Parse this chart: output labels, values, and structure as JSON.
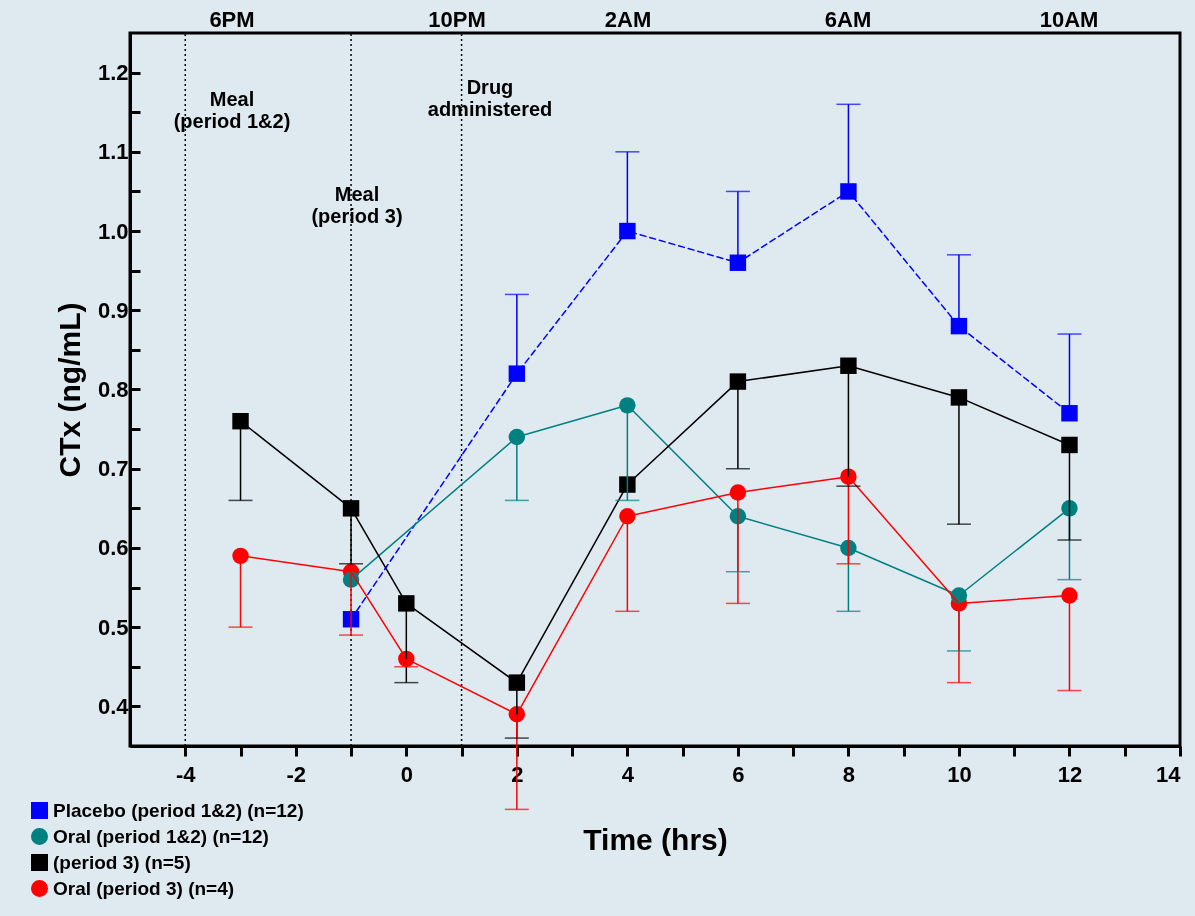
{
  "chart_data": {
    "type": "line",
    "xlabel": "Time (hrs)",
    "ylabel": "CTx (ng/mL)",
    "xlim": [
      -5,
      14
    ],
    "xticks": [
      -4,
      -2,
      0,
      2,
      4,
      6,
      8,
      10,
      12,
      14,
      {
        "value": -3,
        "label": null
      },
      {
        "value": -1,
        "label": null
      },
      {
        "value": 1,
        "label": null
      },
      {
        "value": 3,
        "label": null
      },
      {
        "value": 5,
        "label": null
      },
      {
        "value": 7,
        "label": null
      },
      {
        "value": 9,
        "label": null
      },
      {
        "value": 11,
        "label": null
      },
      {
        "value": 13,
        "label": null
      }
    ],
    "ylim": [
      0.35,
      1.25
    ],
    "yticks": [
      0.4,
      0.5,
      0.6,
      0.7,
      0.8,
      0.9,
      {
        "value": 1,
        "label": "1.0"
      },
      1.1,
      1.2,
      {
        "value": 0.45,
        "label": null
      },
      {
        "value": 0.55,
        "label": null
      },
      {
        "value": 0.65,
        "label": null
      },
      {
        "value": 0.75,
        "label": null
      },
      {
        "value": 0.85,
        "label": null
      },
      {
        "value": 0.95,
        "label": null
      },
      {
        "value": 1.05,
        "label": null
      },
      {
        "value": 1.15,
        "label": null
      }
    ],
    "grid": false,
    "legend": "bottom left",
    "series": [
      {
        "name": "Placebo (period 1&2)   (n=12)",
        "color": "#0000ff",
        "marker": "square",
        "line_style": "dashed",
        "x": [
          -1,
          2,
          4,
          6,
          8,
          10,
          12
        ],
        "values": [
          0.51,
          0.82,
          1.0,
          0.96,
          1.05,
          0.88,
          0.77
        ],
        "errors": [
          null,
          [
            0.82,
            0.92
          ],
          [
            1.0,
            1.1
          ],
          [
            0.96,
            1.05
          ],
          [
            1.05,
            1.16
          ],
          [
            0.88,
            0.97
          ],
          [
            0.77,
            0.87
          ]
        ]
      },
      {
        "name": "Oral (period 1&2)   (n=12)",
        "color": "#008080",
        "marker": "circle",
        "line_style": "solid",
        "x": [
          -1,
          2,
          4,
          6,
          8,
          10,
          12
        ],
        "values": [
          0.56,
          0.74,
          0.78,
          0.64,
          0.6,
          0.54,
          0.65
        ],
        "errors": [
          null,
          [
            0.66,
            0.74
          ],
          [
            0.66,
            0.78
          ],
          [
            0.57,
            0.64
          ],
          [
            0.52,
            0.6
          ],
          [
            0.47,
            0.54
          ],
          [
            0.56,
            0.65
          ]
        ]
      },
      {
        "name": "(period 3)  (n=5)",
        "color": "#000000",
        "marker": "square",
        "line_style": "solid",
        "x": [
          -3,
          -1,
          0,
          2,
          4,
          6,
          8,
          10,
          12
        ],
        "values": [
          0.76,
          0.65,
          0.53,
          0.43,
          0.68,
          0.81,
          0.83,
          0.79,
          0.73
        ],
        "errors": [
          [
            0.66,
            0.76
          ],
          [
            0.58,
            0.65
          ],
          [
            0.43,
            0.53
          ],
          [
            0.36,
            0.43
          ],
          null,
          [
            0.7,
            0.81
          ],
          [
            0.678,
            0.83
          ],
          [
            0.63,
            0.79
          ],
          [
            0.61,
            0.73
          ]
        ]
      },
      {
        "name": "Oral (period 3)  (n=4)",
        "color": "#ff0000",
        "marker": "circle",
        "line_style": "solid",
        "x": [
          -3,
          -1,
          0,
          2,
          4,
          6,
          8,
          10,
          12
        ],
        "values": [
          0.59,
          0.57,
          0.46,
          0.39,
          0.64,
          0.67,
          0.69,
          0.53,
          0.54
        ],
        "errors": [
          [
            0.5,
            0.59
          ],
          [
            0.49,
            0.57
          ],
          [
            0.45,
            0.46
          ],
          [
            0.27,
            0.39
          ],
          [
            0.52,
            0.64
          ],
          [
            0.53,
            0.67
          ],
          [
            0.58,
            0.69
          ],
          [
            0.43,
            0.53
          ],
          [
            0.42,
            0.54
          ]
        ]
      }
    ],
    "ref_lines": [
      {
        "axis": "x",
        "value": -4,
        "line_style": "dotted",
        "color": "#000000"
      },
      {
        "axis": "x",
        "value": -1,
        "line_style": "dotted",
        "color": "#000000"
      },
      {
        "axis": "x",
        "value": 1,
        "line_style": "dotted",
        "color": "#000000"
      }
    ],
    "annotations": [
      "Meal\n(period 1&2)",
      "Meal\n(period 3)",
      "Drug\nadministered",
      "6PM",
      "10PM",
      "2AM",
      "6AM",
      "10AM"
    ]
  }
}
